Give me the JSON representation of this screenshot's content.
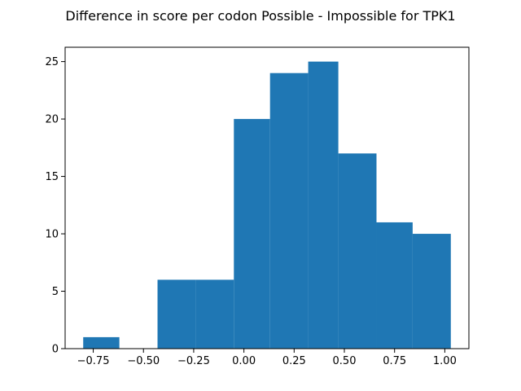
{
  "chart_data": {
    "type": "bar",
    "title": "Difference in score per codon Possible - Impossible for TPK1",
    "xlabel": "",
    "ylabel": "",
    "bins": [
      {
        "x0": -0.8,
        "x1": -0.62,
        "count": 1
      },
      {
        "x0": -0.62,
        "x1": -0.43,
        "count": 0
      },
      {
        "x0": -0.43,
        "x1": -0.24,
        "count": 6
      },
      {
        "x0": -0.24,
        "x1": -0.05,
        "count": 6
      },
      {
        "x0": -0.05,
        "x1": 0.13,
        "count": 20
      },
      {
        "x0": 0.13,
        "x1": 0.32,
        "count": 24
      },
      {
        "x0": 0.32,
        "x1": 0.47,
        "count": 25
      },
      {
        "x0": 0.47,
        "x1": 0.66,
        "count": 17
      },
      {
        "x0": 0.66,
        "x1": 0.84,
        "count": 11
      },
      {
        "x0": 0.84,
        "x1": 1.03,
        "count": 10
      }
    ],
    "xlim": [
      -0.89,
      1.12
    ],
    "ylim": [
      0,
      26.25
    ],
    "xticks": [
      -0.75,
      -0.5,
      -0.25,
      0.0,
      0.25,
      0.5,
      0.75,
      1.0
    ],
    "xtick_labels": [
      "−0.75",
      "−0.50",
      "−0.25",
      "0.00",
      "0.25",
      "0.50",
      "0.75",
      "1.00"
    ],
    "yticks": [
      0,
      5,
      10,
      15,
      20,
      25
    ],
    "ytick_labels": [
      "0",
      "5",
      "10",
      "15",
      "20",
      "25"
    ],
    "bar_color": "#1f77b4",
    "grid": false,
    "legend": false
  }
}
